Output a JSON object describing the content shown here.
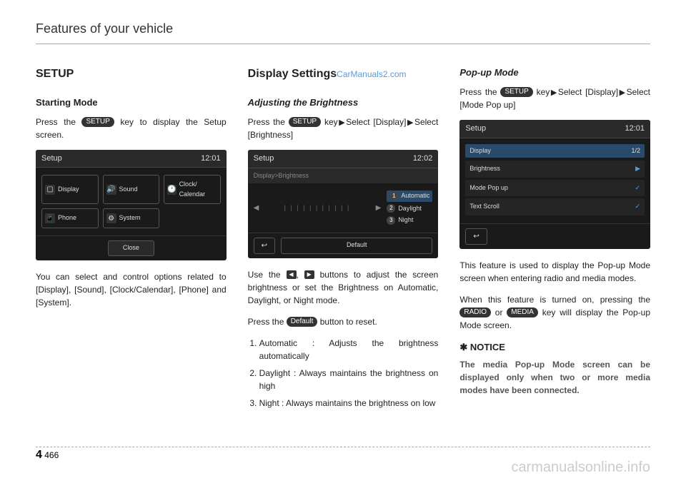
{
  "header": "Features of your vehicle",
  "pageNum": {
    "section": "4",
    "page": "466"
  },
  "watermark": {
    "top": "CarManuals2.com",
    "bottom": "carmanualsonline.info"
  },
  "col1": {
    "h2": "SETUP",
    "h3": "Starting Mode",
    "p1a": "Press the ",
    "p1key": "SETUP",
    "p1b": " key to display the Setup screen.",
    "shot": {
      "title": "Setup",
      "time": "12:01",
      "tiles": [
        {
          "icon": "▢",
          "label": "Display"
        },
        {
          "icon": "🔊",
          "label": "Sound"
        },
        {
          "icon": "🕐",
          "label": "Clock/ Calendar"
        },
        {
          "icon": "📱",
          "label": "Phone"
        },
        {
          "icon": "⚙",
          "label": "System"
        }
      ],
      "close": "Close"
    },
    "p2": "You can select and control options related to [Display], [Sound], [Clock/Calendar], [Phone] and [System]."
  },
  "col2": {
    "h2": "Display Settings",
    "h4": "Adjusting the Brightness",
    "p1a": "Press the ",
    "p1key": "SETUP",
    "p1b": " key",
    "p1c": "Select [Display]",
    "p1d": "Select [Brightness]",
    "shot": {
      "title": "Setup",
      "time": "12:02",
      "sub": "Display>Brightness",
      "opts": [
        {
          "n": "1",
          "label": "Automatic",
          "sel": true
        },
        {
          "n": "2",
          "label": "Daylight",
          "sel": false
        },
        {
          "n": "3",
          "label": "Night",
          "sel": false
        }
      ],
      "default": "Default"
    },
    "p2a": "Use the ",
    "p2b": ", ",
    "p2c": " buttons to adjust the screen brightness or set the Brightness on Automatic, Daylight, or Night mode.",
    "p3a": "Press the ",
    "p3key": "Default",
    "p3b": " button to reset.",
    "list": [
      "Automatic : Adjusts the brightness automatically",
      "Daylight : Always maintains the brightness on high",
      "Night : Always maintains the brightness on low"
    ]
  },
  "col3": {
    "h4": "Pop-up Mode",
    "p1a": "Press the ",
    "p1key": "SETUP",
    "p1b": " key",
    "p1c": "Select [Display]",
    "p1d": "Select [Mode Pop up]",
    "shot": {
      "title": "Setup",
      "time": "12:01",
      "head": {
        "label": "Display",
        "page": "1/2"
      },
      "rows": [
        {
          "label": "Brightness",
          "val": "▶"
        },
        {
          "label": "Mode Pop up",
          "val": "✓"
        },
        {
          "label": "Text Scroll",
          "val": "✓"
        }
      ]
    },
    "p2": "This feature is used to display the Pop-up Mode screen when entering radio and media modes.",
    "p3a": "When this feature is turned on, pressing the ",
    "p3key1": "RADIO",
    "p3b": " or ",
    "p3key2": "MEDIA",
    "p3c": " key will display the Pop-up Mode screen.",
    "notice": "✱ NOTICE",
    "noticeText": "The media Pop-up Mode screen can be displayed only when two or more media modes have been connected."
  }
}
